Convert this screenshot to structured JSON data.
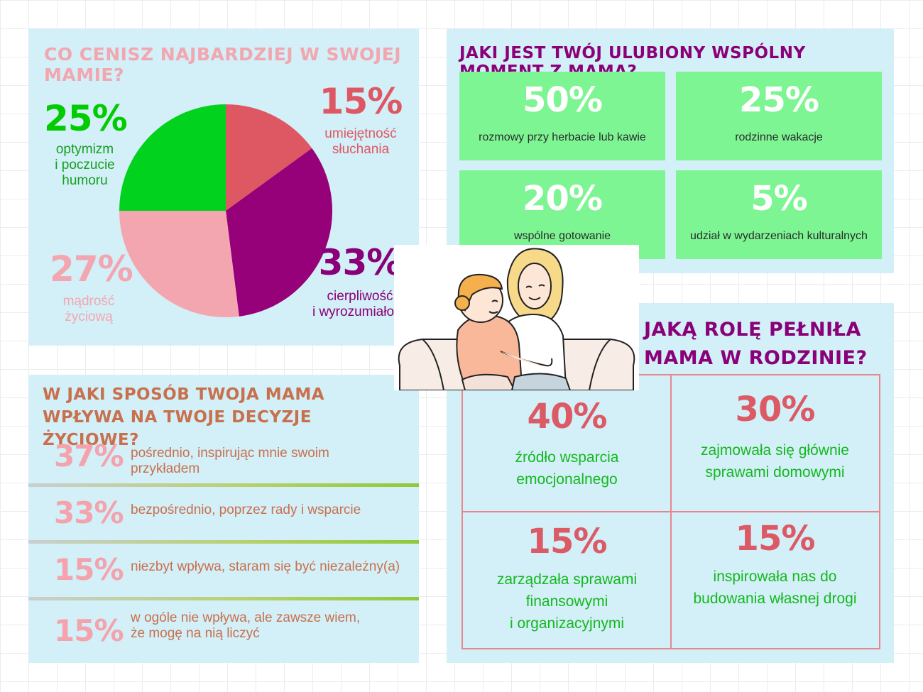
{
  "values_panel": {
    "title": "CO CENISZ NAJBARDZIEJ W SWOJEJ MAMIE?",
    "labels": [
      {
        "pct": "25%",
        "text": "optymizm\ni poczucie\nhumoru",
        "color": "#00cc00"
      },
      {
        "pct": "15%",
        "text": "umiejętność\nsłuchania",
        "color": "#de5864"
      },
      {
        "pct": "27%",
        "text": "mądrość\nżyciową",
        "color": "#f4a6b0"
      },
      {
        "pct": "33%",
        "text": "cierpliwość\ni wyrozumiałość",
        "color": "#8a0078"
      }
    ]
  },
  "chart_data": {
    "type": "pie",
    "title": "CO CENISZ NAJBARDZIEJ W SWOJEJ MAMIE?",
    "slices": [
      {
        "label": "umiejętność słuchania",
        "value": 15,
        "color": "#de5864"
      },
      {
        "label": "cierpliwość i wyrozumiałość",
        "value": 33,
        "color": "#960079"
      },
      {
        "label": "mądrość życiową",
        "value": 27,
        "color": "#f4a6b0"
      },
      {
        "label": "optymizm i poczucie humoru",
        "value": 25,
        "color": "#00d21d"
      }
    ]
  },
  "moments_panel": {
    "title": "JAKI JEST TWÓJ ULUBIONY WSPÓLNY MOMENT Z MAMĄ?",
    "cards": [
      {
        "pct": "50%",
        "text": "rozmowy przy herbacie lub kawie"
      },
      {
        "pct": "25%",
        "text": "rodzinne wakacje"
      },
      {
        "pct": "20%",
        "text": "wspólne gotowanie"
      },
      {
        "pct": "5%",
        "text": "udział w wydarzeniach kulturalnych"
      }
    ]
  },
  "influence_panel": {
    "title": "W JAKI SPOSÓB TWOJA MAMA WPŁYWA NA TWOJE DECYZJE ŻYCIOWE?",
    "rows": [
      {
        "pct": "37%",
        "text": "pośrednio, inspirując mnie swoim przykładem"
      },
      {
        "pct": "33%",
        "text": "bezpośrednio, poprzez rady i wsparcie"
      },
      {
        "pct": "15%",
        "text": "niezbyt wpływa, staram się być niezależny(a)"
      },
      {
        "pct": "15%",
        "text": "w ogóle nie wpływa, ale zawsze wiem,\nże mogę na nią liczyć"
      }
    ]
  },
  "role_panel": {
    "title": "JAKĄ ROLĘ PEŁNIŁA MAMA W RODZINIE?",
    "cells": [
      {
        "pct": "40%",
        "text": "źródło wsparcia\nemocjonalnego"
      },
      {
        "pct": "30%",
        "text": "zajmowała się głównie\nsprawami domowymi"
      },
      {
        "pct": "15%",
        "text": "zarządzała sprawami\nfinansowymi\ni organizacyjnymi"
      },
      {
        "pct": "15%",
        "text": "inspirowała nas do\nbudowania własnej drogi"
      }
    ]
  }
}
